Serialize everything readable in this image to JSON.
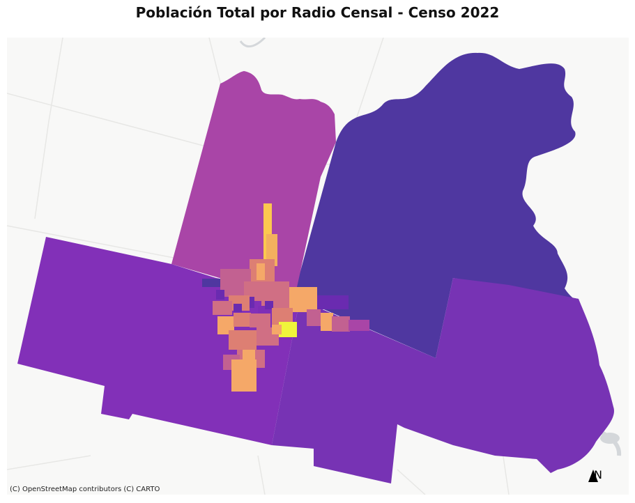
{
  "map": {
    "title": "Población Total por Radio Censal - Censo 2022",
    "attribution": "(C) OpenStreetMap contributors (C) CARTO",
    "north_label": "N",
    "north_icon": "north-arrow-icon",
    "colormap": "plasma",
    "colors": {
      "basemap": "#f8f8f7",
      "roads": "#e8e8e6",
      "water": "#d4d7da",
      "rural_northeast": "#4f37a0",
      "rural_north": "#a945a7",
      "rural_west": "#8230b8",
      "rural_southeast": "#7733b4",
      "urban_low": "#c26191",
      "urban_mid": "#dd7f73",
      "urban_high": "#f5a868",
      "urban_top": "#fcc84f",
      "urban_max": "#f0f53b"
    }
  }
}
